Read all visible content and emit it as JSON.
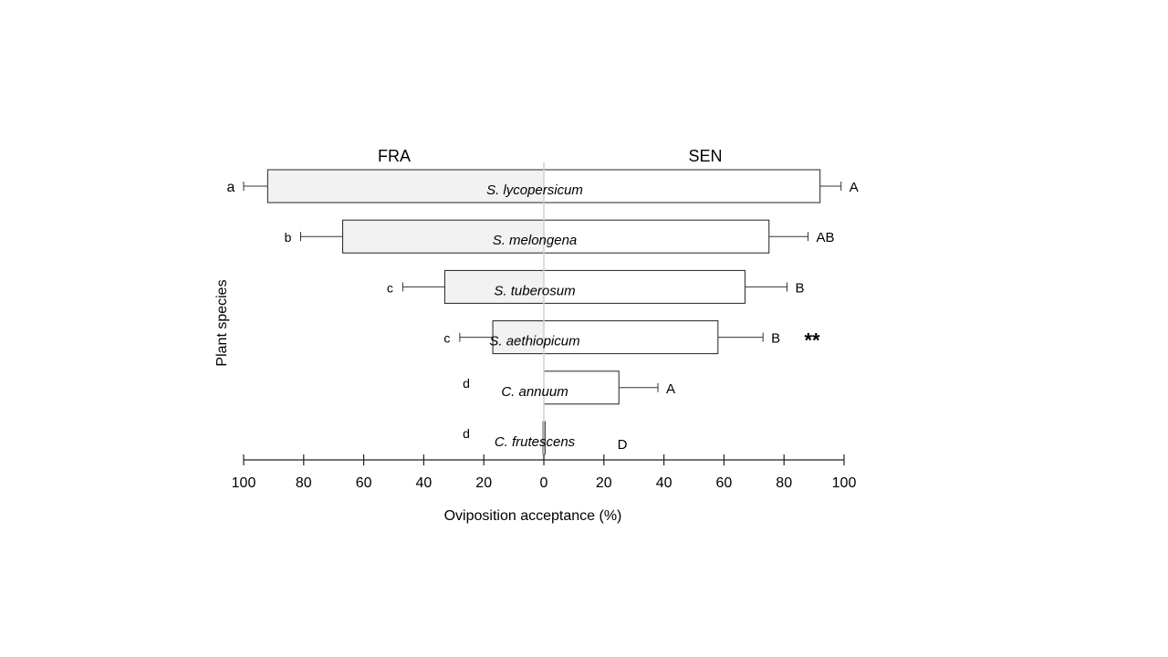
{
  "chart_data": {
    "type": "bar",
    "orientation": "horizontal-diverging",
    "xlabel": "Oviposition acceptance (%)",
    "ylabel": "Plant species",
    "xlim": [
      -100,
      100
    ],
    "x_ticks": [
      100,
      80,
      60,
      40,
      20,
      0,
      20,
      40,
      60,
      80,
      100
    ],
    "groups": [
      "FRA",
      "SEN"
    ],
    "categories": [
      "S. lycopersicum",
      "S. melongena",
      "S. tuberosum",
      "S. aethiopicum",
      "C. annuum",
      "C. frutescens"
    ],
    "series": [
      {
        "name": "FRA",
        "direction": "left",
        "values": [
          92,
          67,
          33,
          17,
          0,
          0
        ],
        "errors": [
          8,
          14,
          14,
          11,
          0,
          0
        ],
        "letters": [
          "a",
          "b",
          "c",
          "c",
          "d",
          "d"
        ]
      },
      {
        "name": "SEN",
        "direction": "right",
        "values": [
          92,
          75,
          67,
          58,
          25,
          0.5
        ],
        "errors": [
          7,
          13,
          14,
          15,
          13,
          0
        ],
        "letters": [
          "A",
          "AB",
          "B",
          "B",
          "A",
          "D"
        ]
      }
    ],
    "annotations": [
      {
        "category": "S. aethiopicum",
        "text": "**"
      }
    ],
    "grid": false,
    "legend": "none"
  }
}
